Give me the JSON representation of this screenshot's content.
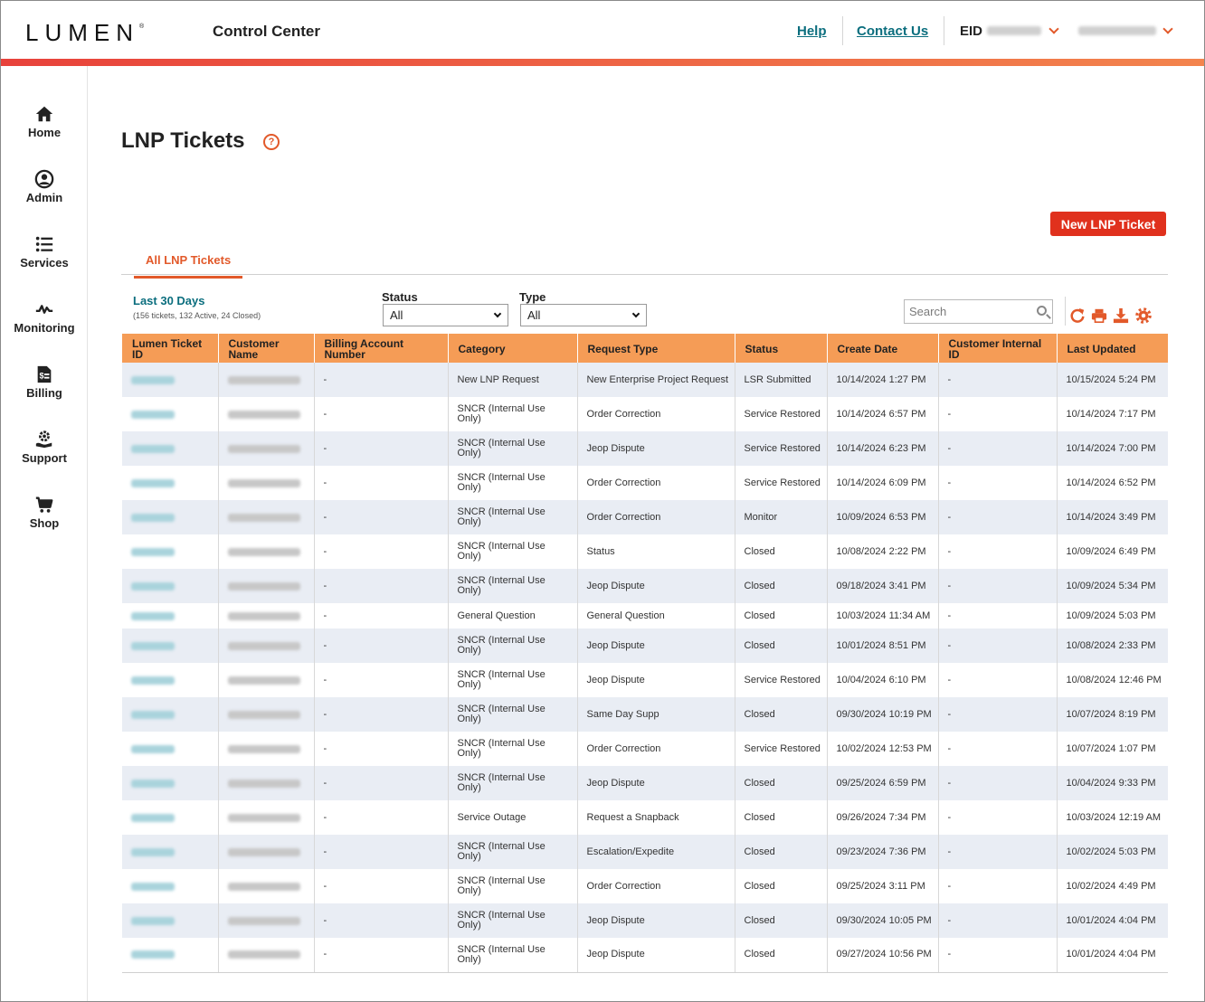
{
  "header": {
    "logo": "LUMEN",
    "logo_mark": "®",
    "app_title": "Control Center",
    "help": "Help",
    "contact_us": "Contact Us",
    "eid_label": "EID"
  },
  "sidebar": {
    "items": [
      {
        "label": "Home",
        "icon": "home-icon"
      },
      {
        "label": "Admin",
        "icon": "user-icon"
      },
      {
        "label": "Services",
        "icon": "list-icon"
      },
      {
        "label": "Monitoring",
        "icon": "pulse-icon"
      },
      {
        "label": "Billing",
        "icon": "invoice-icon"
      },
      {
        "label": "Support",
        "icon": "support-gear-icon"
      },
      {
        "label": "Shop",
        "icon": "cart-icon"
      }
    ]
  },
  "page": {
    "title": "LNP Tickets",
    "help_glyph": "?",
    "new_button": "New LNP Ticket",
    "tab": "All LNP Tickets",
    "period": "Last 30 Days",
    "period_summary": "(156 tickets, 132 Active, 24 Closed)"
  },
  "filters": {
    "status_label": "Status",
    "status_value": "All",
    "type_label": "Type",
    "type_value": "All",
    "search_placeholder": "Search"
  },
  "toolbar": {
    "icons": [
      "refresh-icon",
      "print-icon",
      "download-icon",
      "settings-icon"
    ]
  },
  "colors": {
    "accent": "#e2592a",
    "header_row": "#f59c56",
    "primary_button": "#e0311d",
    "link": "#0b6e7e"
  },
  "table": {
    "columns": [
      "Lumen Ticket ID",
      "Customer Name",
      "Billing Account Number",
      "Category",
      "Request Type",
      "Status",
      "Create Date",
      "Customer Internal ID",
      "Last Updated"
    ],
    "rows": [
      {
        "billing": "-",
        "category": "New LNP Request",
        "request": "New Enterprise Project Request",
        "status": "LSR Submitted",
        "created": "10/14/2024 1:27 PM",
        "internal": "-",
        "updated": "10/15/2024 5:24 PM"
      },
      {
        "billing": "-",
        "category": "SNCR (Internal Use Only)",
        "request": "Order Correction",
        "status": "Service Restored",
        "created": "10/14/2024 6:57 PM",
        "internal": "-",
        "updated": "10/14/2024 7:17 PM"
      },
      {
        "billing": "-",
        "category": "SNCR (Internal Use Only)",
        "request": "Jeop Dispute",
        "status": "Service Restored",
        "created": "10/14/2024 6:23 PM",
        "internal": "-",
        "updated": "10/14/2024 7:00 PM"
      },
      {
        "billing": "-",
        "category": "SNCR (Internal Use Only)",
        "request": "Order Correction",
        "status": "Service Restored",
        "created": "10/14/2024 6:09 PM",
        "internal": "-",
        "updated": "10/14/2024 6:52 PM"
      },
      {
        "billing": "-",
        "category": "SNCR (Internal Use Only)",
        "request": "Order Correction",
        "status": "Monitor",
        "created": "10/09/2024 6:53 PM",
        "internal": "-",
        "updated": "10/14/2024 3:49 PM"
      },
      {
        "billing": "-",
        "category": "SNCR (Internal Use Only)",
        "request": "Status",
        "status": "Closed",
        "created": "10/08/2024 2:22 PM",
        "internal": "-",
        "updated": "10/09/2024 6:49 PM"
      },
      {
        "billing": "-",
        "category": "SNCR (Internal Use Only)",
        "request": "Jeop Dispute",
        "status": "Closed",
        "created": "09/18/2024 3:41 PM",
        "internal": "-",
        "updated": "10/09/2024 5:34 PM"
      },
      {
        "billing": "-",
        "category": "General Question",
        "request": "General Question",
        "status": "Closed",
        "created": "10/03/2024 11:34 AM",
        "internal": "-",
        "updated": "10/09/2024 5:03 PM"
      },
      {
        "billing": "-",
        "category": "SNCR (Internal Use Only)",
        "request": "Jeop Dispute",
        "status": "Closed",
        "created": "10/01/2024 8:51 PM",
        "internal": "-",
        "updated": "10/08/2024 2:33 PM"
      },
      {
        "billing": "-",
        "category": "SNCR (Internal Use Only)",
        "request": "Jeop Dispute",
        "status": "Service Restored",
        "created": "10/04/2024 6:10 PM",
        "internal": "-",
        "updated": "10/08/2024 12:46 PM"
      },
      {
        "billing": "-",
        "category": "SNCR (Internal Use Only)",
        "request": "Same Day Supp",
        "status": "Closed",
        "created": "09/30/2024 10:19 PM",
        "internal": "-",
        "updated": "10/07/2024 8:19 PM"
      },
      {
        "billing": "-",
        "category": "SNCR (Internal Use Only)",
        "request": "Order Correction",
        "status": "Service Restored",
        "created": "10/02/2024 12:53 PM",
        "internal": "-",
        "updated": "10/07/2024 1:07 PM"
      },
      {
        "billing": "-",
        "category": "SNCR (Internal Use Only)",
        "request": "Jeop Dispute",
        "status": "Closed",
        "created": "09/25/2024 6:59 PM",
        "internal": "-",
        "updated": "10/04/2024 9:33 PM"
      },
      {
        "billing": "-",
        "category": "Service Outage",
        "request": "Request a Snapback",
        "status": "Closed",
        "created": "09/26/2024 7:34 PM",
        "internal": "-",
        "updated": "10/03/2024 12:19 AM"
      },
      {
        "billing": "-",
        "category": "SNCR (Internal Use Only)",
        "request": "Escalation/Expedite",
        "status": "Closed",
        "created": "09/23/2024 7:36 PM",
        "internal": "-",
        "updated": "10/02/2024 5:03 PM"
      },
      {
        "billing": "-",
        "category": "SNCR (Internal Use Only)",
        "request": "Order Correction",
        "status": "Closed",
        "created": "09/25/2024 3:11 PM",
        "internal": "-",
        "updated": "10/02/2024 4:49 PM"
      },
      {
        "billing": "-",
        "category": "SNCR (Internal Use Only)",
        "request": "Jeop Dispute",
        "status": "Closed",
        "created": "09/30/2024 10:05 PM",
        "internal": "-",
        "updated": "10/01/2024 4:04 PM"
      },
      {
        "billing": "-",
        "category": "SNCR (Internal Use Only)",
        "request": "Jeop Dispute",
        "status": "Closed",
        "created": "09/27/2024 10:56 PM",
        "internal": "-",
        "updated": "10/01/2024 4:04 PM"
      }
    ]
  }
}
